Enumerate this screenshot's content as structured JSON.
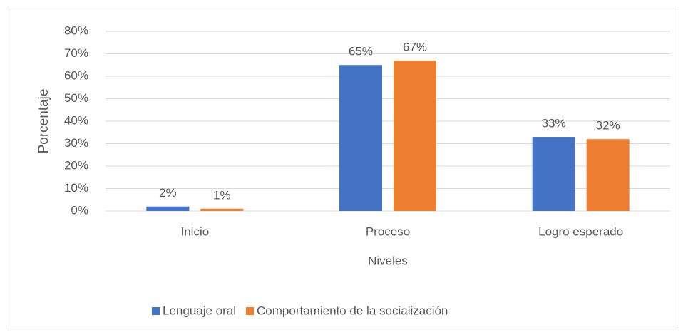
{
  "chart_data": {
    "type": "bar",
    "categories": [
      "Inicio",
      "Proceso",
      "Logro esperado"
    ],
    "series": [
      {
        "name": "Lenguaje oral",
        "color": "#4472c4",
        "values": [
          2,
          65,
          33
        ],
        "value_labels": [
          "2%",
          "65%",
          "33%"
        ]
      },
      {
        "name": "Comportamiento de la socialización",
        "color": "#ed7d31",
        "values": [
          1,
          67,
          32
        ],
        "value_labels": [
          "1%",
          "67%",
          "32%"
        ]
      }
    ],
    "x_label": "Niveles",
    "y_label": "Porcentaje",
    "ylim": [
      0,
      80
    ],
    "yticks": [
      {
        "value": 0,
        "label": "0%"
      },
      {
        "value": 10,
        "label": "10%"
      },
      {
        "value": 20,
        "label": "20%"
      },
      {
        "value": 30,
        "label": "30%"
      },
      {
        "value": 40,
        "label": "40%"
      },
      {
        "value": 50,
        "label": "50%"
      },
      {
        "value": 60,
        "label": "60%"
      },
      {
        "value": 70,
        "label": "70%"
      },
      {
        "value": 80,
        "label": "80%"
      }
    ],
    "grid": true,
    "legend": "bottom"
  }
}
